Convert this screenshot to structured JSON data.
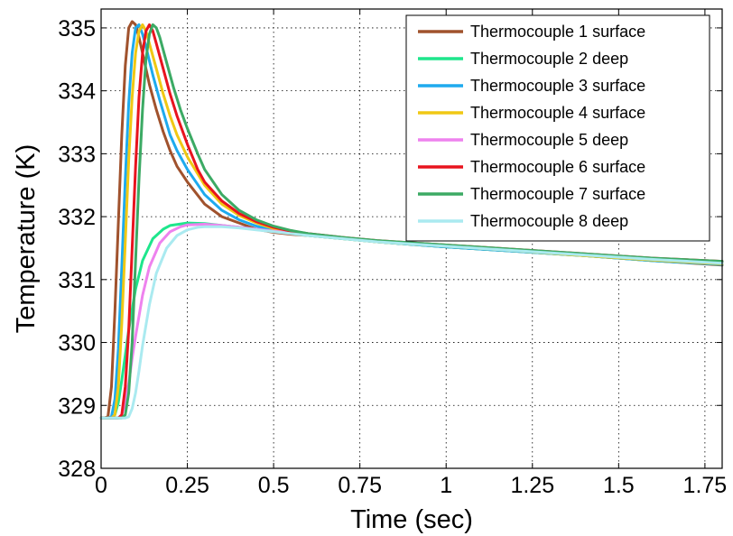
{
  "chart_data": {
    "type": "line",
    "title": "",
    "xlabel": "Time (sec)",
    "ylabel": "Temperature (K)",
    "xlim": [
      0,
      1.8
    ],
    "ylim": [
      328,
      335.3
    ],
    "xticks": [
      0,
      0.25,
      0.5,
      0.75,
      1,
      1.25,
      1.5,
      1.75
    ],
    "xtick_labels": [
      "0",
      "0.25",
      "0.5",
      "0.75",
      "1",
      "1.25",
      "1.5",
      "1.75"
    ],
    "yticks": [
      328,
      329,
      330,
      331,
      332,
      333,
      334,
      335
    ],
    "ytick_labels": [
      "328",
      "329",
      "330",
      "331",
      "332",
      "333",
      "334",
      "335"
    ],
    "grid": true,
    "legend_position": "top-right",
    "series": [
      {
        "name": "Thermocouple 1 surface",
        "color": "#a0522d",
        "x": [
          0.0,
          0.01,
          0.02,
          0.03,
          0.04,
          0.05,
          0.06,
          0.07,
          0.08,
          0.09,
          0.1,
          0.11,
          0.12,
          0.14,
          0.16,
          0.18,
          0.2,
          0.22,
          0.25,
          0.3,
          0.35,
          0.4,
          0.45,
          0.5,
          0.55,
          0.6,
          0.7,
          0.8,
          1.0,
          1.2,
          1.4,
          1.6,
          1.8
        ],
        "y": [
          328.8,
          328.8,
          328.82,
          329.3,
          330.5,
          331.9,
          333.3,
          334.4,
          335.0,
          335.1,
          335.05,
          334.85,
          334.6,
          334.1,
          333.7,
          333.35,
          333.05,
          332.8,
          332.55,
          332.2,
          332.0,
          331.9,
          331.8,
          331.75,
          331.72,
          331.7,
          331.65,
          331.6,
          331.52,
          331.45,
          331.38,
          331.3,
          331.23
        ]
      },
      {
        "name": "Thermocouple 2 deep",
        "color": "#1ee68c",
        "x": [
          0.0,
          0.03,
          0.04,
          0.05,
          0.06,
          0.07,
          0.08,
          0.1,
          0.12,
          0.15,
          0.18,
          0.2,
          0.25,
          0.3,
          0.35,
          0.4,
          0.45,
          0.5,
          0.6,
          0.7,
          0.8,
          1.0,
          1.2,
          1.4,
          1.6,
          1.8
        ],
        "y": [
          328.8,
          328.8,
          328.85,
          329.05,
          329.4,
          329.8,
          330.2,
          330.85,
          331.3,
          331.65,
          331.8,
          331.86,
          331.9,
          331.89,
          331.86,
          331.83,
          331.8,
          331.77,
          331.7,
          331.65,
          331.6,
          331.52,
          331.45,
          331.38,
          331.3,
          331.24
        ]
      },
      {
        "name": "Thermocouple 3 surface",
        "color": "#1eaaee",
        "x": [
          0.0,
          0.02,
          0.03,
          0.04,
          0.05,
          0.06,
          0.07,
          0.08,
          0.09,
          0.1,
          0.11,
          0.12,
          0.13,
          0.15,
          0.17,
          0.2,
          0.22,
          0.25,
          0.3,
          0.35,
          0.4,
          0.45,
          0.5,
          0.55,
          0.6,
          0.7,
          0.8,
          1.0,
          1.2,
          1.4,
          1.6,
          1.8
        ],
        "y": [
          328.8,
          328.8,
          328.82,
          329.1,
          329.9,
          331.2,
          332.6,
          333.8,
          334.6,
          335.0,
          335.05,
          334.9,
          334.7,
          334.25,
          333.85,
          333.3,
          333.05,
          332.75,
          332.35,
          332.1,
          331.95,
          331.85,
          331.78,
          331.74,
          331.71,
          331.66,
          331.6,
          331.52,
          331.45,
          331.38,
          331.3,
          331.24
        ]
      },
      {
        "name": "Thermocouple 4 surface",
        "color": "#f0c814",
        "x": [
          0.0,
          0.03,
          0.04,
          0.05,
          0.06,
          0.07,
          0.08,
          0.09,
          0.1,
          0.11,
          0.12,
          0.13,
          0.14,
          0.16,
          0.18,
          0.2,
          0.22,
          0.25,
          0.3,
          0.35,
          0.4,
          0.45,
          0.5,
          0.55,
          0.6,
          0.7,
          0.8,
          1.0,
          1.2,
          1.4,
          1.6,
          1.8
        ],
        "y": [
          328.8,
          328.8,
          328.85,
          329.3,
          330.3,
          331.6,
          332.9,
          333.9,
          334.6,
          334.95,
          335.05,
          334.95,
          334.75,
          334.35,
          333.95,
          333.6,
          333.3,
          332.95,
          332.5,
          332.2,
          332.02,
          331.9,
          331.81,
          331.75,
          331.72,
          331.66,
          331.6,
          331.53,
          331.46,
          331.38,
          331.31,
          331.25
        ]
      },
      {
        "name": "Thermocouple 5 deep",
        "color": "#ee82ee",
        "x": [
          0.0,
          0.05,
          0.06,
          0.07,
          0.08,
          0.09,
          0.1,
          0.12,
          0.14,
          0.17,
          0.2,
          0.23,
          0.25,
          0.3,
          0.35,
          0.4,
          0.45,
          0.5,
          0.6,
          0.7,
          0.8,
          1.0,
          1.2,
          1.4,
          1.6,
          1.8
        ],
        "y": [
          328.8,
          328.8,
          328.85,
          329.05,
          329.35,
          329.75,
          330.1,
          330.75,
          331.2,
          331.58,
          331.76,
          331.84,
          331.87,
          331.88,
          331.86,
          331.83,
          331.8,
          331.77,
          331.71,
          331.66,
          331.61,
          331.54,
          331.47,
          331.4,
          331.33,
          331.27
        ]
      },
      {
        "name": "Thermocouple 6 surface",
        "color": "#e8141e",
        "x": [
          0.0,
          0.05,
          0.06,
          0.07,
          0.08,
          0.09,
          0.1,
          0.11,
          0.12,
          0.13,
          0.14,
          0.15,
          0.16,
          0.18,
          0.2,
          0.22,
          0.25,
          0.28,
          0.3,
          0.35,
          0.4,
          0.45,
          0.5,
          0.55,
          0.6,
          0.7,
          0.8,
          1.0,
          1.2,
          1.4,
          1.6,
          1.8
        ],
        "y": [
          328.8,
          328.8,
          328.85,
          329.3,
          330.2,
          331.5,
          332.8,
          333.9,
          334.6,
          334.95,
          335.05,
          334.95,
          334.75,
          334.35,
          333.95,
          333.6,
          333.15,
          332.75,
          332.55,
          332.25,
          332.05,
          331.92,
          331.83,
          331.77,
          331.73,
          331.67,
          331.62,
          331.55,
          331.48,
          331.41,
          331.34,
          331.29
        ]
      },
      {
        "name": "Thermocouple 7 surface",
        "color": "#3caa64",
        "x": [
          0.0,
          0.06,
          0.07,
          0.08,
          0.09,
          0.1,
          0.11,
          0.12,
          0.13,
          0.14,
          0.15,
          0.16,
          0.17,
          0.19,
          0.21,
          0.23,
          0.25,
          0.28,
          0.3,
          0.35,
          0.4,
          0.45,
          0.5,
          0.55,
          0.6,
          0.7,
          0.8,
          1.0,
          1.2,
          1.4,
          1.6,
          1.8
        ],
        "y": [
          328.8,
          328.8,
          328.85,
          329.2,
          330.0,
          331.3,
          332.6,
          333.7,
          334.5,
          334.9,
          335.05,
          335.0,
          334.85,
          334.45,
          334.05,
          333.7,
          333.4,
          333.0,
          332.75,
          332.35,
          332.1,
          331.95,
          331.85,
          331.78,
          331.73,
          331.67,
          331.62,
          331.55,
          331.48,
          331.41,
          331.34,
          331.29
        ]
      },
      {
        "name": "Thermocouple 8 deep",
        "color": "#aaeaf0",
        "x": [
          0.0,
          0.07,
          0.08,
          0.09,
          0.1,
          0.11,
          0.12,
          0.14,
          0.16,
          0.19,
          0.22,
          0.25,
          0.28,
          0.3,
          0.35,
          0.4,
          0.45,
          0.5,
          0.6,
          0.7,
          0.8,
          1.0,
          1.2,
          1.4,
          1.6,
          1.8
        ],
        "y": [
          328.8,
          328.8,
          328.82,
          328.95,
          329.2,
          329.55,
          329.95,
          330.6,
          331.1,
          331.5,
          331.7,
          331.79,
          331.83,
          331.84,
          331.84,
          331.82,
          331.79,
          331.76,
          331.7,
          331.65,
          331.6,
          331.53,
          331.46,
          331.39,
          331.32,
          331.26
        ]
      }
    ]
  }
}
